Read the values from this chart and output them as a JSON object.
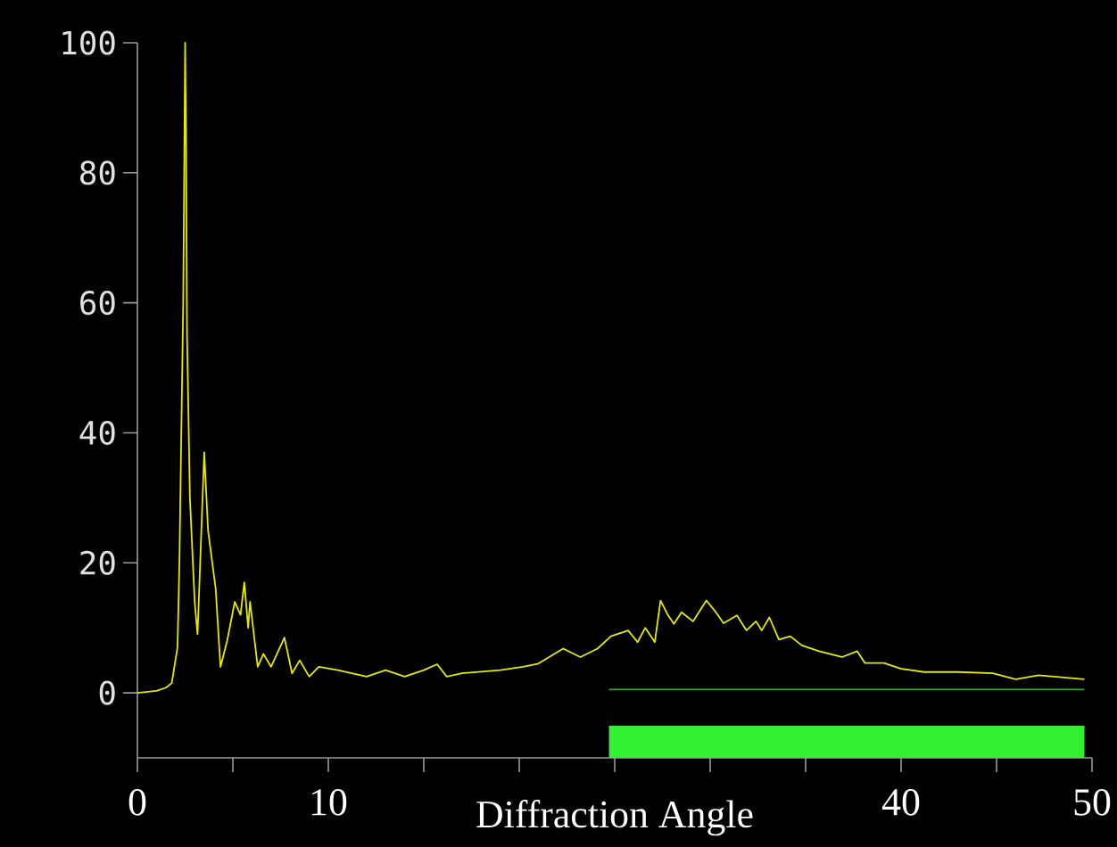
{
  "chart_data": {
    "type": "line",
    "xlabel": "Diffraction Angle",
    "xlim": [
      0,
      50
    ],
    "ylim": [
      -10,
      100
    ],
    "xticks": [
      0,
      {
        "value": 5,
        "label": null
      },
      10,
      {
        "value": 15,
        "label": null
      },
      {
        "value": 20,
        "label": null
      },
      {
        "value": 25,
        "label": null
      },
      {
        "value": 30,
        "label": null
      },
      {
        "value": 35,
        "label": null
      },
      40,
      {
        "value": 45,
        "label": null
      },
      50
    ],
    "yticks": [
      0,
      20,
      40,
      60,
      80,
      100
    ],
    "series": [
      {
        "color": "#e8e800",
        "x": [
          0,
          1,
          1.5,
          1.8,
          2.1,
          2.2,
          2.4,
          2.5,
          2.55,
          2.6,
          2.75,
          3.0,
          3.15,
          3.35,
          3.5,
          3.7,
          4.1,
          4.35,
          4.7,
          5.1,
          5.4,
          5.6,
          5.8,
          5.9,
          6.3,
          6.6,
          7.0,
          7.7,
          8.1,
          8.5,
          9,
          9.5,
          10.5,
          12,
          13,
          14,
          15,
          15.7,
          16.2,
          17,
          19,
          20.2,
          21,
          22.3,
          23.2,
          24.1,
          24.8,
          25.7,
          26.2,
          26.6,
          27.1,
          27.4,
          27.8,
          28.1,
          28.5,
          29.1,
          29.8,
          30.3,
          30.7,
          31.4,
          31.9,
          32.4,
          32.7,
          33.1,
          33.6,
          34.2,
          34.8,
          35.7,
          36.9,
          37.7,
          38.1,
          39.1,
          40.0,
          41.2,
          43.0,
          44.8,
          46.0,
          47.2,
          49.6
        ],
        "values": [
          0,
          0.3,
          0.8,
          1.5,
          7,
          20,
          60,
          100,
          84,
          55,
          30,
          14,
          9,
          25,
          37,
          25,
          16,
          4,
          8,
          14,
          12,
          17,
          10,
          14,
          4,
          6,
          4,
          8.5,
          3,
          5,
          2.5,
          4,
          3.5,
          2.5,
          3.5,
          2.5,
          3.5,
          4.4,
          2.5,
          3,
          3.5,
          4,
          4.5,
          6.8,
          5.5,
          6.8,
          8.7,
          9.6,
          7.8,
          10,
          7.8,
          14.2,
          11.9,
          10.6,
          12.4,
          11,
          14.2,
          12.4,
          10.7,
          11.9,
          9.6,
          11,
          9.6,
          11.6,
          8.2,
          8.7,
          7.3,
          6.4,
          5.5,
          6.4,
          4.6,
          4.6,
          3.7,
          3.2,
          3.2,
          3,
          2.1,
          2.7,
          2.1
        ]
      },
      {
        "color": "#2fa52f",
        "x": [
          24.7,
          49.6
        ],
        "values": [
          0.5,
          0.5
        ]
      },
      {
        "color": "#33ee33",
        "x": [
          24.7,
          49.6
        ],
        "values": [
          -5.2,
          -5.2
        ],
        "lower": [
          -10,
          -10
        ],
        "upper": [
          -5.2,
          -5.2
        ]
      }
    ]
  }
}
